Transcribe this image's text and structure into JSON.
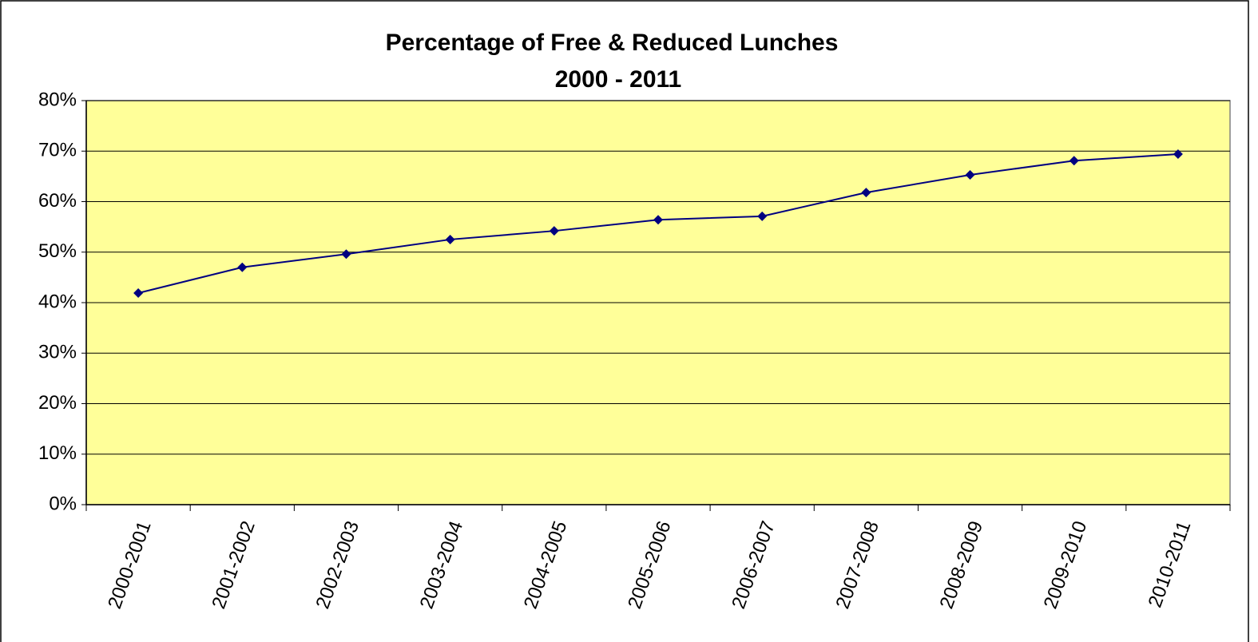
{
  "chart_data": {
    "type": "line",
    "title": "Percentage of Free & Reduced Lunches",
    "subtitle": "2000 - 2011",
    "categories": [
      "2000-2001",
      "2001-2002",
      "2002-2003",
      "2003-2004",
      "2004-2005",
      "2005-2006",
      "2006-2007",
      "2007-2008",
      "2008-2009",
      "2009-2010",
      "2010-2011"
    ],
    "series": [
      {
        "color": "#000080",
        "values": [
          41.9,
          47,
          49.6,
          52.5,
          54.2,
          56.4,
          57.1,
          61.8,
          65.3,
          68.1,
          69.4
        ]
      }
    ],
    "ylim": [
      0,
      80
    ],
    "yticks": [
      {
        "value": 0,
        "label": "0%"
      },
      {
        "value": 10,
        "label": "10%"
      },
      {
        "value": 20,
        "label": "20%"
      },
      {
        "value": 30,
        "label": "30%"
      },
      {
        "value": 40,
        "label": "40%"
      },
      {
        "value": 50,
        "label": "50%"
      },
      {
        "value": 60,
        "label": "60%"
      },
      {
        "value": 70,
        "label": "70%"
      },
      {
        "value": 80,
        "label": "80%"
      }
    ],
    "grid": true,
    "plot_background": "#ffff99"
  }
}
